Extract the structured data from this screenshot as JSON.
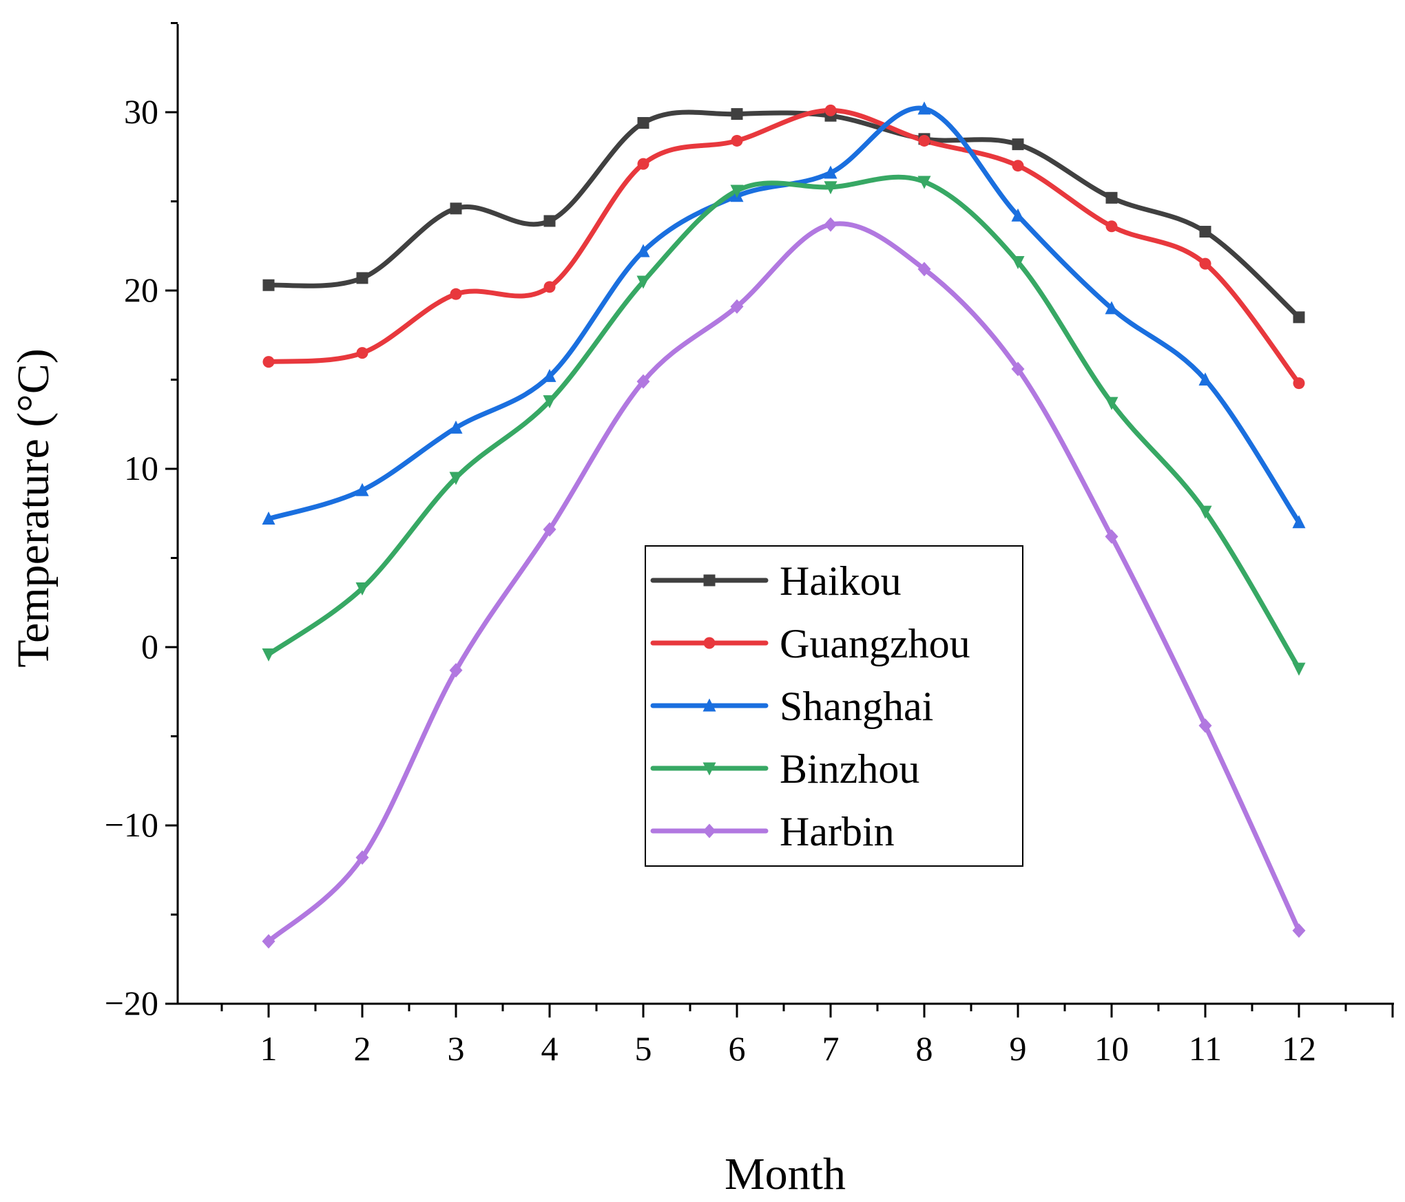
{
  "chart_data": {
    "type": "line",
    "title": "",
    "xlabel": "Month",
    "ylabel": "Temperature (°C)",
    "x": [
      1,
      2,
      3,
      4,
      5,
      6,
      7,
      8,
      9,
      10,
      11,
      12
    ],
    "x_tick_labels": [
      "1",
      "2",
      "3",
      "4",
      "5",
      "6",
      "7",
      "8",
      "9",
      "10",
      "11",
      "12"
    ],
    "xlim": [
      0,
      13
    ],
    "ylim": [
      -20,
      35
    ],
    "y_ticks": [
      -20,
      -10,
      0,
      10,
      20,
      30
    ],
    "y_tick_labels": [
      "−20",
      "−10",
      "0",
      "10",
      "20",
      "30"
    ],
    "grid": false,
    "legend_position": "center-right",
    "smoothed": true,
    "series": [
      {
        "name": "Haikou",
        "color": "#404040",
        "marker": "square",
        "values": [
          20.3,
          20.7,
          24.6,
          23.9,
          29.4,
          29.9,
          29.8,
          28.5,
          28.2,
          25.2,
          23.3,
          18.5
        ]
      },
      {
        "name": "Guangzhou",
        "color": "#e8383d",
        "marker": "circle",
        "values": [
          16.0,
          16.5,
          19.8,
          20.2,
          27.1,
          28.4,
          30.1,
          28.4,
          27.0,
          23.6,
          21.5,
          14.8
        ]
      },
      {
        "name": "Shanghai",
        "color": "#1a6fdf",
        "marker": "triangle-up",
        "values": [
          7.2,
          8.8,
          12.3,
          15.2,
          22.2,
          25.3,
          26.6,
          30.2,
          24.2,
          19.0,
          15.0,
          7.0
        ]
      },
      {
        "name": "Binzhou",
        "color": "#37a864",
        "marker": "triangle-down",
        "values": [
          -0.4,
          3.3,
          9.5,
          13.8,
          20.5,
          25.6,
          25.8,
          26.1,
          21.6,
          13.7,
          7.6,
          -1.2
        ]
      },
      {
        "name": "Harbin",
        "color": "#b178e0",
        "marker": "diamond",
        "values": [
          -16.5,
          -11.8,
          -1.3,
          6.6,
          14.9,
          19.1,
          23.7,
          21.2,
          15.6,
          6.2,
          -4.4,
          -15.9
        ]
      }
    ]
  }
}
